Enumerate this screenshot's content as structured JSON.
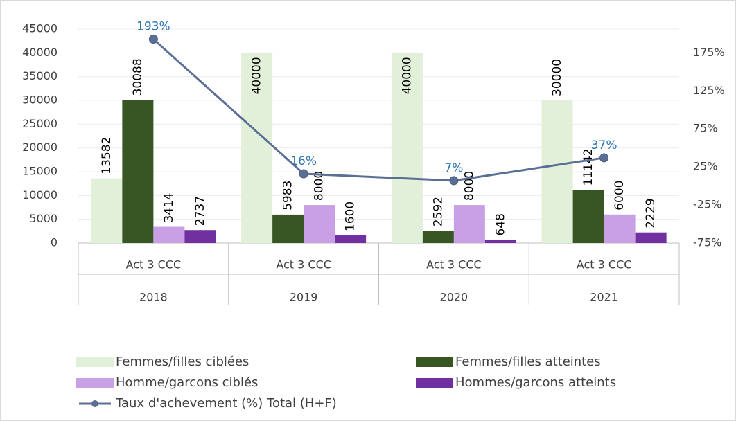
{
  "chart_data": {
    "type": "bar",
    "categories": [
      "Act 3 CCC",
      "Act 3 CCC",
      "Act 3 CCC",
      "Act 3 CCC"
    ],
    "groups": [
      "2018",
      "2019",
      "2020",
      "2021"
    ],
    "series": [
      {
        "name": "Femmes/filles ciblées",
        "color": "#e2f0d9",
        "values": [
          13582,
          40000,
          40000,
          30000
        ]
      },
      {
        "name": "Femmes/filles atteintes",
        "color": "#375623",
        "values": [
          30088,
          5983,
          2592,
          11142
        ]
      },
      {
        "name": "Homme/garcons ciblés",
        "color": "#c9a0e6",
        "values": [
          3414,
          8000,
          8000,
          6000
        ]
      },
      {
        "name": "Hommes/garcons atteints",
        "color": "#7030a0",
        "values": [
          2737,
          1600,
          648,
          2229
        ]
      },
      {
        "name": "Taux d'achevement (%) Total (H+F)",
        "type": "line",
        "axis": "y2",
        "color": "#5b6f95",
        "values": [
          193,
          16,
          7,
          37
        ],
        "value_labels": [
          "193%",
          "16%",
          "7%",
          "37%"
        ]
      }
    ],
    "ylim": [
      0,
      45000
    ],
    "yticks": [
      0,
      5000,
      10000,
      15000,
      20000,
      25000,
      30000,
      35000,
      40000,
      45000
    ],
    "y2lim": [
      -75,
      206.25
    ],
    "y2ticks": [
      {
        "value": -75,
        "label": "-75%"
      },
      {
        "value": -25,
        "label": "-25%"
      },
      {
        "value": 25,
        "label": "25%"
      },
      {
        "value": 75,
        "label": "75%"
      },
      {
        "value": 125,
        "label": "125%"
      },
      {
        "value": 175,
        "label": "175%"
      }
    ],
    "grid": true
  }
}
